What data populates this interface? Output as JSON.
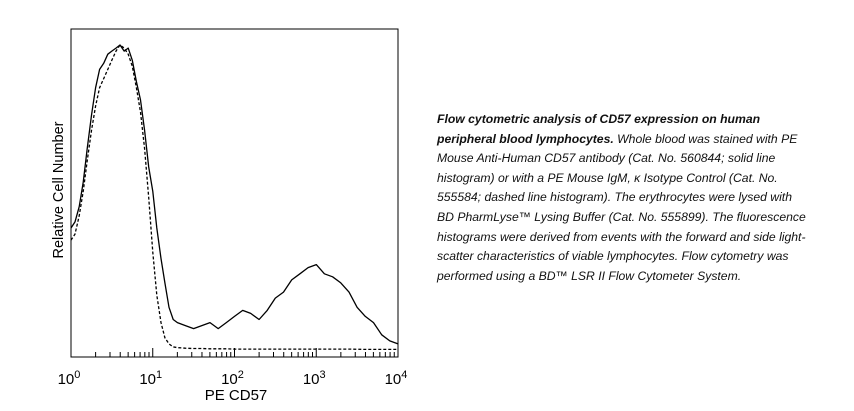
{
  "chart_data": {
    "type": "line",
    "xlabel": "PE CD57",
    "ylabel": "Relative Cell Number",
    "xscale": "log",
    "xlim": [
      1,
      10000
    ],
    "ylim": [
      0,
      100
    ],
    "x_ticks": [
      {
        "value": 1,
        "base": "10",
        "exp": "0"
      },
      {
        "value": 10,
        "base": "10",
        "exp": "1"
      },
      {
        "value": 100,
        "base": "10",
        "exp": "2"
      },
      {
        "value": 1000,
        "base": "10",
        "exp": "3"
      },
      {
        "value": 10000,
        "base": "10",
        "exp": "4"
      }
    ],
    "grid": false,
    "series": [
      {
        "style": "solid",
        "color": "#000000",
        "x": [
          1,
          1.12,
          1.26,
          1.41,
          1.58,
          1.78,
          2.0,
          2.24,
          2.51,
          2.82,
          3.16,
          3.55,
          3.98,
          4.47,
          5.01,
          5.62,
          6.31,
          7.08,
          7.94,
          8.91,
          10,
          11.2,
          12.6,
          14.1,
          15.8,
          17.8,
          20,
          25.1,
          31.6,
          39.8,
          50.1,
          63.1,
          79.4,
          100,
          126,
          158,
          200,
          251,
          316,
          398,
          501,
          631,
          794,
          1000,
          1259,
          1585,
          1995,
          2512,
          3162,
          3981,
          5012,
          6310,
          7943,
          10000
        ],
        "y": [
          40,
          42,
          47,
          55,
          66,
          77,
          86,
          92,
          94,
          97,
          98,
          99,
          100,
          98,
          99,
          95,
          88,
          82,
          72,
          60,
          52,
          40,
          30,
          22,
          14,
          10,
          9,
          8,
          7,
          8,
          9,
          7,
          9,
          11,
          13,
          12,
          10,
          13,
          17,
          19,
          23,
          25,
          27,
          28,
          25,
          24,
          22,
          19,
          14,
          11,
          9,
          5,
          3,
          2
        ]
      },
      {
        "style": "dashed",
        "color": "#000000",
        "x": [
          1,
          1.12,
          1.26,
          1.41,
          1.58,
          1.78,
          2.0,
          2.24,
          2.51,
          2.82,
          3.16,
          3.55,
          3.98,
          4.47,
          5.01,
          5.62,
          6.31,
          7.08,
          7.94,
          8.91,
          10,
          11.2,
          12.6,
          14.1,
          15.8,
          17.8,
          20,
          25.1,
          31.6,
          39.8,
          50.1,
          63.1,
          79.4,
          100,
          158,
          251,
          398,
          631,
          1000,
          1585,
          2512,
          3981,
          6310,
          10000
        ],
        "y": [
          36,
          38,
          44,
          52,
          62,
          72,
          80,
          86,
          89,
          92,
          95,
          98,
          100,
          99,
          97,
          93,
          86,
          78,
          66,
          50,
          32,
          18,
          9,
          4,
          2,
          1,
          0.8,
          0.6,
          0.5,
          0.5,
          0.4,
          0.4,
          0.4,
          0.3,
          0.3,
          0.3,
          0.3,
          0.3,
          0.3,
          0.3,
          0.3,
          0.2,
          0.2,
          0.2
        ]
      }
    ]
  },
  "caption": {
    "lead": "Flow cytometric analysis of CD57 expression on human peripheral blood lymphocytes.",
    "body": "Whole blood was stained with PE Mouse Anti-Human CD57 antibody (Cat. No. 560844; solid line histogram) or with a PE Mouse IgM, κ Isotype Control (Cat. No. 555584; dashed line histogram). The erythrocytes were lysed with BD PharmLyse™ Lysing Buffer (Cat. No. 555899). The fluorescence histograms were derived from events with the forward and side light-scatter characteristics of viable lymphocytes. Flow cytometry was performed using a BD™ LSR II Flow Cytometer System."
  }
}
